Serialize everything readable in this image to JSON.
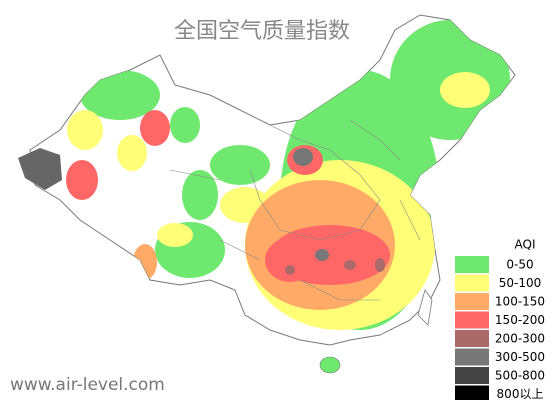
{
  "title": "全国空气质量指数",
  "watermark": "www.air-level.com",
  "legend": {
    "title": "AQI",
    "items": [
      {
        "label": "0-50",
        "color": "#6ee86e"
      },
      {
        "label": "50-100",
        "color": "#ffff77"
      },
      {
        "label": "100-150",
        "color": "#ffaa66"
      },
      {
        "label": "150-200",
        "color": "#ff6666"
      },
      {
        "label": "200-300",
        "color": "#aa6a6a"
      },
      {
        "label": "300-500",
        "color": "#777777"
      },
      {
        "label": "500-800",
        "color": "#444444"
      },
      {
        "label": "800以上",
        "color": "#000000"
      }
    ]
  }
}
